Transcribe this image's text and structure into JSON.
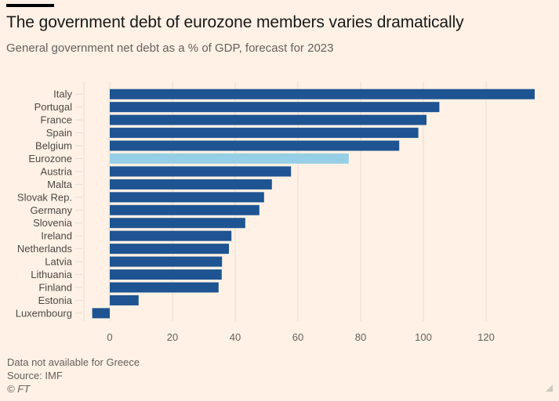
{
  "header": {
    "title": "The government debt of eurozone members varies dramatically",
    "subtitle": "General government net debt as a % of GDP, forecast for 2023"
  },
  "footer": {
    "note": "Data not available for Greece",
    "source": "Source: IMF",
    "copyright": "© FT"
  },
  "colors": {
    "background": "#fff1e5",
    "bar": "#1e5491",
    "highlight": "#96cfe6",
    "grid": "#e7dcd2"
  },
  "chart_data": {
    "type": "bar",
    "orientation": "horizontal",
    "title": "The government debt of eurozone members varies dramatically",
    "subtitle": "General government net debt as a % of GDP, forecast for 2023",
    "xlabel": "",
    "ylabel": "",
    "xlim": [
      -8,
      136
    ],
    "xticks": [
      0,
      20,
      40,
      60,
      80,
      100,
      120
    ],
    "grid": true,
    "categories": [
      "Italy",
      "Portugal",
      "France",
      "Spain",
      "Belgium",
      "Eurozone",
      "Austria",
      "Malta",
      "Slovak Rep.",
      "Germany",
      "Slovenia",
      "Ireland",
      "Netherlands",
      "Latvia",
      "Lithuania",
      "Finland",
      "Estonia",
      "Luxembourg"
    ],
    "values": [
      135.5,
      105.1,
      101.0,
      98.4,
      92.3,
      76.2,
      57.8,
      51.7,
      49.2,
      47.7,
      43.2,
      38.8,
      38.0,
      35.8,
      35.7,
      34.7,
      9.2,
      -5.6
    ],
    "highlight": [
      "Eurozone"
    ],
    "legend": "none"
  }
}
